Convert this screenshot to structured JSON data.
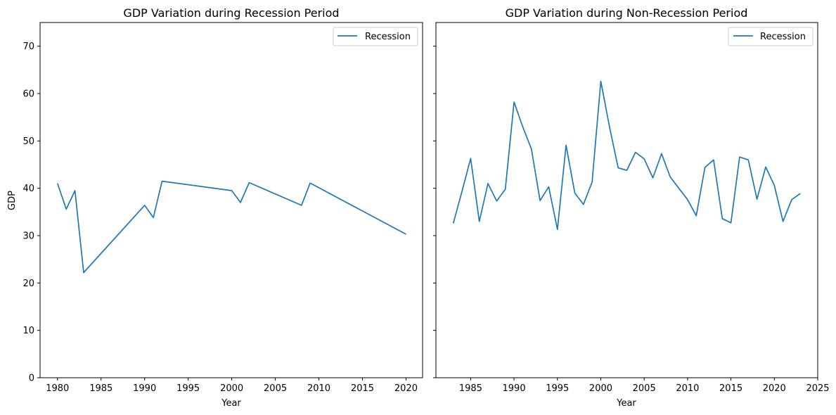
{
  "chart_data": [
    {
      "type": "line",
      "title": "GDP Variation during Recession Period",
      "xlabel": "Year",
      "ylabel": "GDP",
      "xlim": [
        1978.0,
        2021.9
      ],
      "ylim": [
        0,
        75
      ],
      "xticks": [
        1980,
        1985,
        1990,
        1995,
        2000,
        2005,
        2010,
        2015,
        2020
      ],
      "yticks": [
        0,
        10,
        20,
        30,
        40,
        50,
        60,
        70
      ],
      "grid": false,
      "legend_position": "top-right",
      "color": "#1f77b4",
      "series": [
        {
          "name": "Recession",
          "x": [
            1980,
            1981,
            1982,
            1983,
            1990,
            1991,
            1992,
            2000,
            2001,
            2002,
            2008,
            2009,
            2020
          ],
          "y": [
            41.0,
            35.6,
            39.5,
            22.2,
            36.4,
            33.8,
            41.5,
            39.5,
            37.0,
            41.2,
            36.4,
            41.1,
            30.3
          ]
        }
      ]
    },
    {
      "type": "line",
      "title": "GDP Variation during Non-Recession Period",
      "xlabel": "Year",
      "ylabel": "",
      "xlim": [
        1981.0,
        2025.0
      ],
      "ylim": [
        0,
        75
      ],
      "xticks": [
        1985,
        1990,
        1995,
        2000,
        2005,
        2010,
        2015,
        2020,
        2025
      ],
      "yticks": [
        0,
        10,
        20,
        30,
        40,
        50,
        60,
        70
      ],
      "grid": false,
      "legend_position": "top-right",
      "color": "#1f77b4",
      "series": [
        {
          "name": "Recession",
          "x": [
            1983,
            1984,
            1985,
            1986,
            1987,
            1988,
            1989,
            1990,
            1991,
            1992,
            1993,
            1994,
            1995,
            1996,
            1997,
            1998,
            1999,
            2000,
            2001,
            2002,
            2003,
            2004,
            2005,
            2006,
            2007,
            2008,
            2009,
            2010,
            2011,
            2012,
            2013,
            2014,
            2015,
            2016,
            2017,
            2018,
            2019,
            2020,
            2021,
            2022,
            2023
          ],
          "y": [
            32.6,
            39.3,
            46.3,
            33.0,
            41.0,
            37.3,
            39.8,
            58.2,
            53.0,
            48.3,
            37.4,
            40.3,
            31.3,
            49.1,
            39.0,
            36.6,
            41.3,
            62.6,
            53.0,
            44.3,
            43.8,
            47.6,
            46.2,
            42.2,
            47.3,
            42.4,
            40.0,
            37.6,
            34.2,
            44.4,
            46.0,
            33.6,
            32.7,
            46.6,
            46.0,
            37.7,
            44.5,
            40.6,
            33.0,
            37.6,
            38.9
          ]
        }
      ]
    }
  ]
}
